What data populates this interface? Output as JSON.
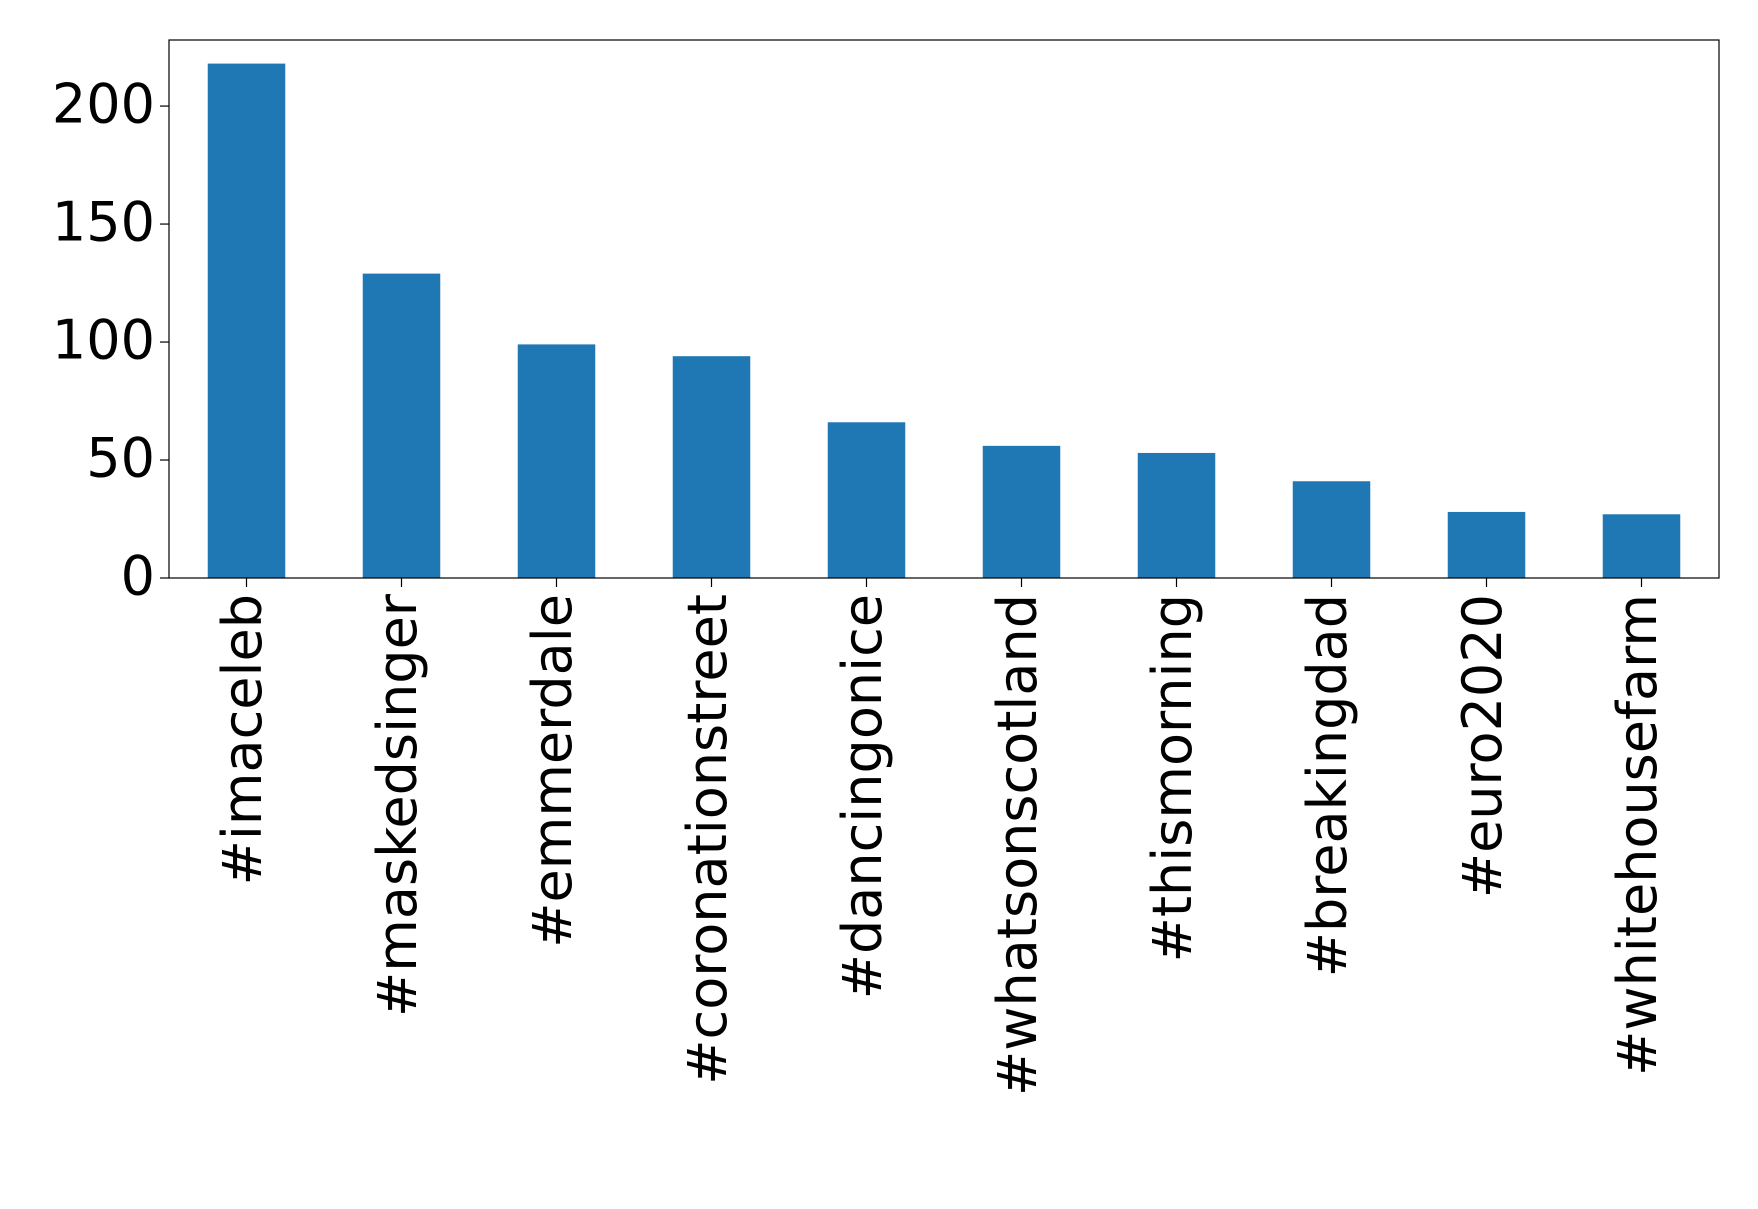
{
  "chart_data": {
    "type": "bar",
    "categories": [
      "#imaceleb",
      "#maskedsinger",
      "#emmerdale",
      "#coronationstreet",
      "#dancingonice",
      "#whatsonscotland",
      "#thismorning",
      "#breakingdad",
      "#euro2020",
      "#whitehousefarm"
    ],
    "values": [
      218,
      129,
      99,
      94,
      66,
      56,
      53,
      41,
      28,
      27
    ],
    "color": "#1f77b4",
    "ylim": [
      0,
      228
    ],
    "yticks": [
      0,
      50,
      100,
      150,
      200
    ],
    "grid": false
  }
}
